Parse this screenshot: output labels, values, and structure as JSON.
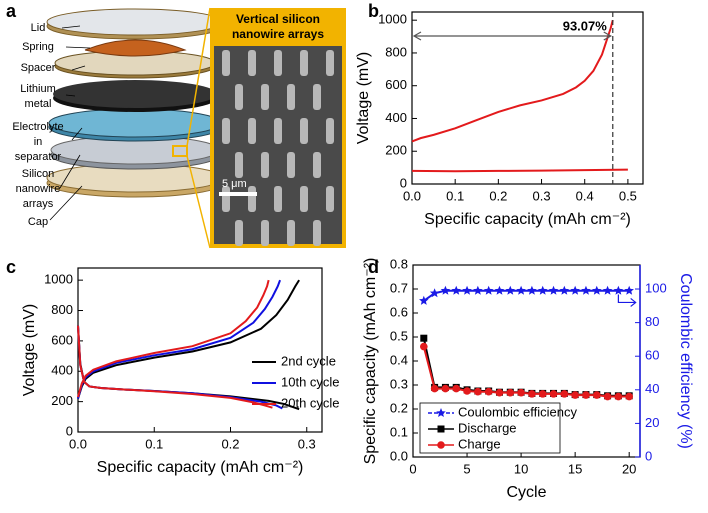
{
  "illustration": {
    "panel": "a",
    "labels": [
      [
        "Lid"
      ],
      [
        "Spring"
      ],
      [
        "Spacer"
      ],
      [
        "Lithium",
        "metal"
      ],
      [
        "Electrolyte",
        "in",
        "separator"
      ],
      [
        "Silicon",
        "nanowire",
        "arrays"
      ],
      [
        "Cap"
      ]
    ],
    "inset_title": [
      "Vertical silicon",
      "nanowire arrays"
    ],
    "scale_bar": "5 μm"
  },
  "chart_data": [
    {
      "type": "line",
      "panel": "b",
      "xlabel": "Specific capacity (mAh cm⁻²)",
      "ylabel": "Voltage (mV)",
      "xlim": [
        0,
        0.535
      ],
      "xticks": [
        {
          "value": 0,
          "label": "0.0"
        },
        0.1,
        0.2,
        0.3,
        0.4,
        0.5
      ],
      "ylim": [
        0,
        1050
      ],
      "yticks": [
        0,
        200,
        400,
        600,
        800,
        1000
      ],
      "series": [
        {
          "color": "#e31a1c",
          "x": [
            0,
            0.02,
            0.05,
            0.1,
            0.15,
            0.2,
            0.25,
            0.3,
            0.35,
            0.38,
            0.4,
            0.42,
            0.44,
            0.45,
            0.46,
            0.465
          ],
          "values": [
            260,
            280,
            300,
            340,
            390,
            440,
            480,
            510,
            550,
            590,
            630,
            690,
            790,
            870,
            950,
            1000
          ]
        },
        {
          "color": "#e31a1c",
          "x": [
            0,
            0.1,
            0.2,
            0.3,
            0.4,
            0.5
          ],
          "values": [
            80,
            78,
            80,
            82,
            85,
            88
          ]
        }
      ],
      "annotation": "93.07%",
      "annotation_x": 0.465
    },
    {
      "type": "line",
      "panel": "c",
      "xlabel": "Specific capacity (mAh cm⁻²)",
      "ylabel": "Voltage (mV)",
      "xlim": [
        0,
        0.32
      ],
      "xticks": [
        {
          "value": 0,
          "label": "0.0"
        },
        0.1,
        0.2,
        0.3
      ],
      "ylim": [
        0,
        1080
      ],
      "yticks": [
        0,
        200,
        400,
        600,
        800,
        1000
      ],
      "series": [
        {
          "name": "2nd cycle",
          "color": "#000000",
          "x": [
            0,
            0.005,
            0.01,
            0.02,
            0.05,
            0.1,
            0.15,
            0.2,
            0.24,
            0.26,
            0.275,
            0.285,
            0.29
          ],
          "values": [
            220,
            300,
            350,
            390,
            440,
            490,
            530,
            590,
            680,
            770,
            870,
            960,
            1000
          ],
          "discharge_x": [
            0,
            0.003,
            0.008,
            0.015,
            0.03,
            0.06,
            0.1,
            0.15,
            0.2,
            0.25,
            0.27,
            0.29
          ],
          "discharge_values": [
            700,
            450,
            330,
            300,
            290,
            280,
            270,
            255,
            235,
            205,
            185,
            150
          ]
        },
        {
          "name": "10th cycle",
          "color": "#1010e0",
          "x": [
            0,
            0.005,
            0.01,
            0.02,
            0.05,
            0.1,
            0.15,
            0.2,
            0.23,
            0.245,
            0.255,
            0.262,
            0.265
          ],
          "values": [
            220,
            310,
            360,
            400,
            455,
            505,
            545,
            620,
            720,
            810,
            890,
            960,
            1000
          ],
          "discharge_x": [
            0,
            0.003,
            0.008,
            0.015,
            0.03,
            0.06,
            0.1,
            0.15,
            0.2,
            0.24,
            0.26,
            0.268
          ],
          "discharge_values": [
            700,
            440,
            330,
            300,
            290,
            280,
            270,
            255,
            230,
            200,
            175,
            155
          ]
        },
        {
          "name": "20th cycle",
          "color": "#e31a1c",
          "x": [
            0,
            0.005,
            0.01,
            0.02,
            0.05,
            0.1,
            0.15,
            0.2,
            0.22,
            0.235,
            0.243,
            0.248,
            0.25
          ],
          "values": [
            230,
            320,
            370,
            410,
            465,
            520,
            565,
            650,
            730,
            820,
            900,
            960,
            1000
          ],
          "discharge_x": [
            0,
            0.003,
            0.008,
            0.015,
            0.03,
            0.06,
            0.1,
            0.15,
            0.2,
            0.23,
            0.245,
            0.255
          ],
          "discharge_values": [
            700,
            440,
            330,
            300,
            290,
            280,
            268,
            250,
            225,
            195,
            175,
            160
          ]
        }
      ]
    },
    {
      "type": "line",
      "panel": "d",
      "xlabel": "Cycle",
      "ylabel": "Specific capacity (mAh cm⁻²)",
      "y2label": "Coulombic efficiency (%)",
      "xlim": [
        0,
        21
      ],
      "xticks": [
        0,
        5,
        10,
        15,
        20
      ],
      "ylim": [
        0,
        0.8
      ],
      "yticks": [
        {
          "value": 0,
          "label": "0.0"
        },
        0.1,
        0.2,
        0.3,
        0.4,
        0.5,
        0.6,
        0.7,
        0.8
      ],
      "y2lim": [
        0,
        114.3
      ],
      "y2ticks": [
        0,
        20,
        40,
        60,
        80,
        100
      ],
      "series": [
        {
          "name": "Coulombic efficiency",
          "color": "#1a1ae6",
          "marker": "star",
          "axis": "y2",
          "x": [
            1,
            2,
            3,
            4,
            5,
            6,
            7,
            8,
            9,
            10,
            11,
            12,
            13,
            14,
            15,
            16,
            17,
            18,
            19,
            20
          ],
          "values": [
            93,
            97.5,
            99,
            99,
            99,
            99,
            99,
            99,
            99,
            99,
            99,
            99,
            99,
            99,
            99,
            99,
            99,
            99,
            99,
            99
          ]
        },
        {
          "name": "Discharge",
          "color": "#000000",
          "marker": "square",
          "x": [
            1,
            2,
            3,
            4,
            5,
            6,
            7,
            8,
            9,
            10,
            11,
            12,
            13,
            14,
            15,
            16,
            17,
            18,
            19,
            20
          ],
          "values": [
            0.495,
            0.29,
            0.29,
            0.29,
            0.28,
            0.275,
            0.275,
            0.27,
            0.27,
            0.27,
            0.265,
            0.265,
            0.265,
            0.265,
            0.26,
            0.26,
            0.26,
            0.255,
            0.255,
            0.255
          ]
        },
        {
          "name": "Charge",
          "color": "#e31a1c",
          "marker": "circle",
          "x": [
            1,
            2,
            3,
            4,
            5,
            6,
            7,
            8,
            9,
            10,
            11,
            12,
            13,
            14,
            15,
            16,
            17,
            18,
            19,
            20
          ],
          "values": [
            0.46,
            0.285,
            0.285,
            0.285,
            0.275,
            0.272,
            0.272,
            0.268,
            0.268,
            0.268,
            0.263,
            0.263,
            0.263,
            0.263,
            0.258,
            0.258,
            0.258,
            0.252,
            0.252,
            0.252
          ]
        }
      ]
    }
  ]
}
